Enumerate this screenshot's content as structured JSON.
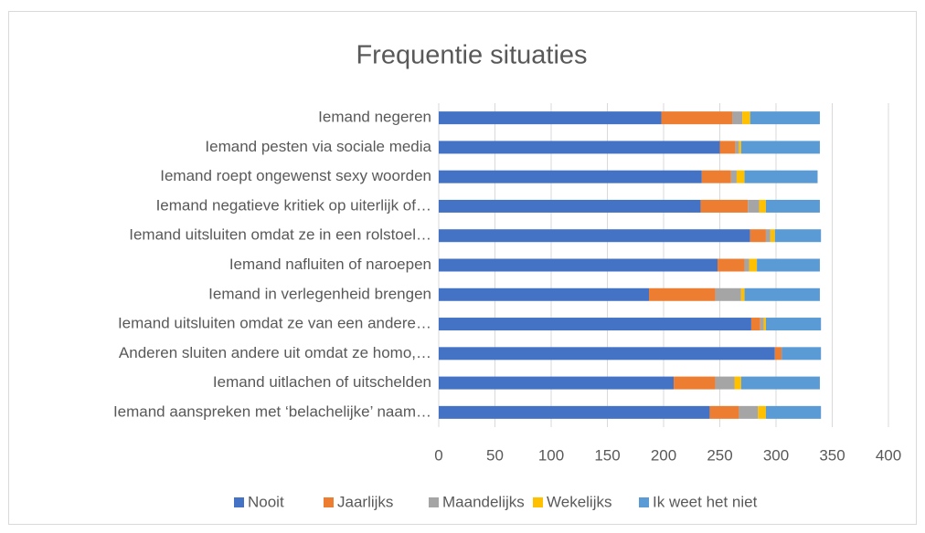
{
  "chart_data": {
    "type": "stacked_barh",
    "title": "Frequentie situaties",
    "categories": [
      "Iemand negeren",
      "Iemand pesten via sociale media",
      "Iemand roept ongewenst sexy woorden",
      "Iemand negatieve kritiek op uiterlijk of…",
      "Iemand uitsluiten omdat ze in een rolstoel…",
      "Iemand nafluiten of naroepen",
      "Iemand in verlegenheid brengen",
      "Iemand uitsluiten omdat ze van een andere…",
      "Anderen sluiten andere uit omdat ze homo,…",
      "Iemand uitlachen of uitschelden",
      "Iemand aanspreken met ‘belachelijke’ naam…"
    ],
    "series": [
      {
        "name": "Nooit",
        "color": "#4472c4",
        "values": [
          198,
          250,
          234,
          233,
          277,
          248,
          187,
          278,
          299,
          209,
          241
        ]
      },
      {
        "name": "Jaarlijks",
        "color": "#ed7d31",
        "values": [
          63,
          14,
          26,
          42,
          14,
          24,
          59,
          8,
          6,
          37,
          26
        ]
      },
      {
        "name": "Maandelijks",
        "color": "#a5a5a5",
        "values": [
          9,
          3,
          5,
          10,
          4,
          4,
          23,
          3,
          0,
          17,
          17
        ]
      },
      {
        "name": "Wekelijks",
        "color": "#ffc000",
        "values": [
          7,
          2,
          7,
          6,
          4,
          7,
          3,
          2,
          0,
          6,
          7
        ]
      },
      {
        "name": "Ik weet het niet",
        "color": "#5b9bd5",
        "values": [
          62,
          70,
          65,
          48,
          41,
          56,
          67,
          49,
          35,
          70,
          49
        ]
      }
    ],
    "xlim": [
      0,
      400
    ],
    "xticks": [
      0,
      50,
      100,
      150,
      200,
      250,
      300,
      350,
      400
    ],
    "grid": true,
    "legend": "bottom"
  }
}
